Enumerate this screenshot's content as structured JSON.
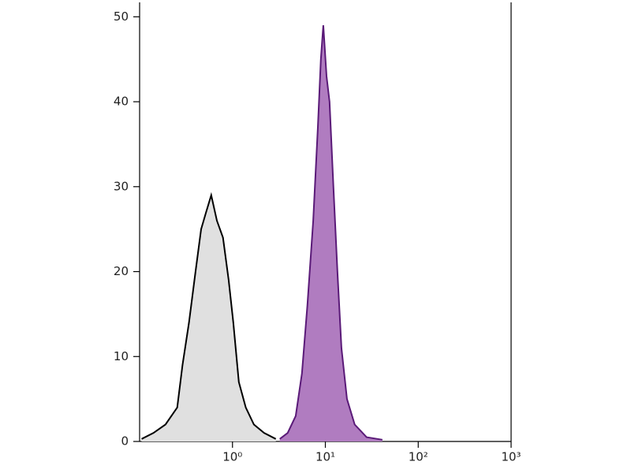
{
  "chart_data": {
    "type": "histogram_overlay",
    "xscale": "log",
    "xlim": [
      0.1,
      1000
    ],
    "xticks": [
      {
        "value": 1,
        "label": "10⁰"
      },
      {
        "value": 10,
        "label": "10¹"
      },
      {
        "value": 100,
        "label": "10²"
      },
      {
        "value": 1000,
        "label": "10³"
      }
    ],
    "ylim": [
      0,
      51.7
    ],
    "yticks": [
      0,
      10,
      20,
      30,
      40,
      50
    ],
    "series": [
      {
        "color": "#000000",
        "fill": "#e0e0e0",
        "x": [
          0.105,
          0.141,
          0.19,
          0.254,
          0.29,
          0.34,
          0.4,
          0.46,
          0.52,
          0.59,
          0.68,
          0.79,
          0.91,
          1.02,
          1.17,
          1.39,
          1.7,
          2.19,
          2.93
        ],
        "values": [
          0.3,
          1,
          2,
          4,
          9,
          14,
          20,
          25,
          27,
          29,
          26,
          24,
          19,
          14,
          7,
          4,
          2,
          1,
          0.3
        ]
      },
      {
        "color": "#5a1a78",
        "fill": "#b07cc0",
        "x": [
          3.23,
          3.93,
          4.79,
          5.6,
          6.4,
          7.4,
          8.3,
          8.95,
          9.5,
          10.3,
          11.1,
          12.2,
          13.5,
          14.9,
          17.1,
          20.7,
          27.8,
          41.1
        ],
        "values": [
          0.3,
          1,
          3,
          8,
          16,
          26,
          37,
          45,
          49,
          43,
          40,
          30,
          20,
          11,
          5,
          2,
          0.5,
          0.2
        ]
      }
    ]
  }
}
